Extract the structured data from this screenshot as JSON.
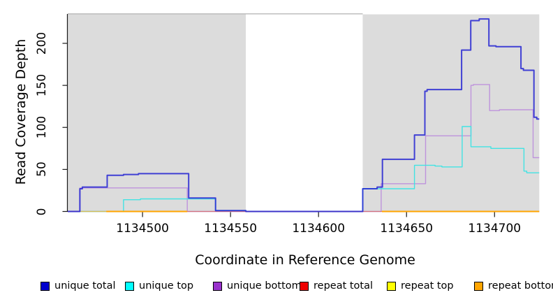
{
  "figure": {
    "background": "#ffffff",
    "band_color": "#dcdcdc",
    "axis_color": "#1a1a1a",
    "top_rule_color": "#b0b0b0",
    "y_axis_title": "Read Coverage Depth",
    "x_axis_title": "Coordinate in Reference Genome"
  },
  "chart_data": {
    "type": "line",
    "subtype": "step-coverage",
    "title": "",
    "xlabel": "Coordinate in Reference Genome",
    "ylabel": "Read Coverage Depth",
    "xlim": [
      1134457.5,
      1134725.4
    ],
    "ylim": [
      0,
      234
    ],
    "x_ticks": [
      1134500,
      1134550,
      1134600,
      1134650,
      1134700
    ],
    "y_ticks": [
      0,
      50,
      100,
      150,
      200
    ],
    "grid": false,
    "legend_position": "bottom",
    "shaded_regions": [
      {
        "from": 1134457.5,
        "to": 1134558.7
      },
      {
        "from": 1134625.1,
        "to": 1134725.4
      }
    ],
    "series": [
      {
        "id": "unique-bottom",
        "name": "unique bottom",
        "line_color": "#be93dc",
        "line_width": 1.4,
        "opacity": 1,
        "segments": [
          [
            [
              1134457.5,
              0
            ],
            [
              1134464.4,
              28
            ],
            [
              1134525.4,
              0
            ],
            [
              1134635.6,
              33
            ],
            [
              1134660.8,
              90
            ],
            [
              1134686.6,
              150
            ],
            [
              1134688.0,
              151
            ],
            [
              1134697.2,
              120
            ],
            [
              1134702.8,
              121
            ],
            [
              1134721.9,
              64
            ],
            [
              1134725.4,
              64
            ]
          ]
        ]
      },
      {
        "id": "unique-top",
        "name": "unique top",
        "line_color": "#42e3e3",
        "line_width": 1.4,
        "opacity": 1,
        "segments": [
          [
            [
              1134457.5,
              0
            ],
            [
              1134489.2,
              14
            ],
            [
              1134498.8,
              15
            ],
            [
              1134541.5,
              1
            ],
            [
              1134558.7,
              0
            ],
            [
              1134625.1,
              27
            ],
            [
              1134654.5,
              55
            ],
            [
              1134666.2,
              54
            ],
            [
              1134670.1,
              53
            ],
            [
              1134681.6,
              101
            ],
            [
              1134686.6,
              77
            ],
            [
              1134697.9,
              75
            ],
            [
              1134716.7,
              48
            ],
            [
              1134718.3,
              46
            ],
            [
              1134725.4,
              46
            ]
          ]
        ]
      },
      {
        "id": "repeat-total",
        "name": "repeat total",
        "line_color": "#d4737f",
        "line_width": 1.2,
        "opacity": 1,
        "segments": [
          [
            [
              1134457.5,
              0
            ],
            [
              1134725.4,
              0
            ]
          ]
        ]
      },
      {
        "id": "repeat-top",
        "name": "repeat top",
        "line_color": "#d8d84a",
        "line_width": 1.2,
        "opacity": 0.75,
        "segments": [
          [
            [
              1134464.4,
              0
            ],
            [
              1134489.2,
              0
            ]
          ]
        ]
      },
      {
        "id": "repeat-bottom",
        "name": "repeat bottom",
        "line_color": "#ffa500",
        "line_width": 2,
        "opacity": 1,
        "segments": [
          [
            [
              1134479.4,
              0
            ],
            [
              1134525.4,
              0
            ]
          ],
          [
            [
              1134636.0,
              0
            ],
            [
              1134725.4,
              0
            ]
          ]
        ]
      },
      {
        "id": "unique-total",
        "name": "unique total",
        "line_color": "#2424d2",
        "line_width": 2,
        "opacity": 0.85,
        "segments": [
          [
            [
              1134457.5,
              0
            ],
            [
              1134464.4,
              27
            ],
            [
              1134465.8,
              29
            ],
            [
              1134479.9,
              43
            ],
            [
              1134489.2,
              44
            ],
            [
              1134497.7,
              45
            ],
            [
              1134526.2,
              16
            ],
            [
              1134541.5,
              1
            ],
            [
              1134558.7,
              0
            ],
            [
              1134625.1,
              27
            ],
            [
              1134633.3,
              29
            ],
            [
              1134636.3,
              62
            ],
            [
              1134654.5,
              91
            ],
            [
              1134660.4,
              143
            ],
            [
              1134661.7,
              145
            ],
            [
              1134681.3,
              192
            ],
            [
              1134686.5,
              227
            ],
            [
              1134691.3,
              229
            ],
            [
              1134696.8,
              197
            ],
            [
              1134700.8,
              196
            ],
            [
              1134715.0,
              170
            ],
            [
              1134716.4,
              168
            ],
            [
              1134722.4,
              112
            ],
            [
              1134724.0,
              110
            ],
            [
              1134725.4,
              110
            ]
          ]
        ]
      }
    ]
  },
  "legend": {
    "items": [
      {
        "label": "unique total",
        "color": "#0000cd"
      },
      {
        "label": "unique top",
        "color": "#00ffff"
      },
      {
        "label": "unique bottom",
        "color": "#9932cc"
      },
      {
        "label": "repeat total",
        "color": "#ee0000"
      },
      {
        "label": "repeat top",
        "color": "#ffff00"
      },
      {
        "label": "repeat bottom",
        "color": "#ffa500"
      }
    ]
  }
}
